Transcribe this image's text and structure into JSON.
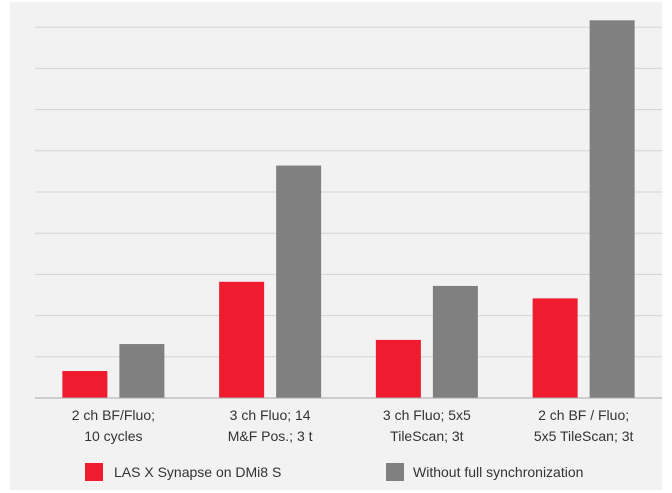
{
  "chart_data": {
    "type": "bar",
    "categories": [
      [
        "2 ch BF/Fluo;",
        "10 cycles"
      ],
      [
        "3 ch Fluo; 14",
        "M&F Pos.; 3 t"
      ],
      [
        "3 ch Fluo; 5x5",
        "TileScan; 3t"
      ],
      [
        "2 ch BF / Fluo;",
        "5x5 TileScan; 3t"
      ]
    ],
    "series": [
      {
        "name": "LAS X Synapse on DMi8 S",
        "color": "#ee1c2e",
        "values": [
          0.65,
          2.8,
          1.4,
          2.4
        ]
      },
      {
        "name": "Without full synchronization",
        "color": "#808080",
        "values": [
          1.3,
          5.6,
          2.7,
          9.1
        ]
      }
    ],
    "ylim": [
      0,
      9.3
    ],
    "grid": true,
    "legend_position": "bottom",
    "title": "",
    "xlabel": "",
    "ylabel": ""
  }
}
